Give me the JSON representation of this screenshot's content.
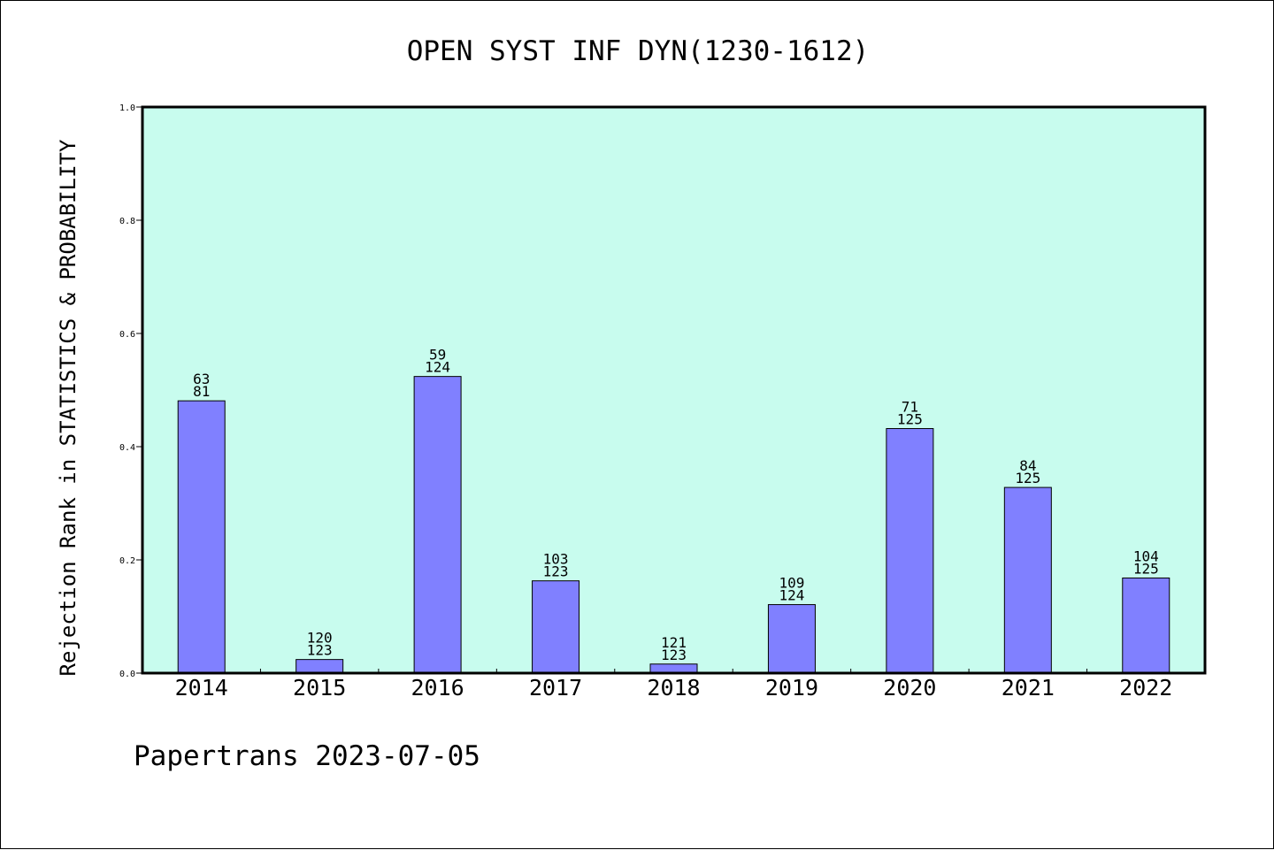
{
  "chart_data": {
    "type": "bar",
    "title": "OPEN SYST INF DYN(1230-1612)",
    "ylabel": "Rejection Rank in STATISTICS & PROBABILITY",
    "xlabel": "",
    "footer": "Papertrans 2023-07-05",
    "categories": [
      "2014",
      "2015",
      "2016",
      "2017",
      "2018",
      "2019",
      "2020",
      "2021",
      "2022"
    ],
    "values": [
      0.481,
      0.024,
      0.524,
      0.163,
      0.016,
      0.121,
      0.432,
      0.328,
      0.168
    ],
    "labels_top": [
      "63",
      "120",
      "59",
      "103",
      "121",
      "109",
      "71",
      "84",
      "104"
    ],
    "labels_bottom": [
      "81",
      "123",
      "124",
      "123",
      "123",
      "124",
      "125",
      "125",
      "125"
    ],
    "ylim": [
      0,
      1.0
    ],
    "yticks": [
      "0.0",
      "0.2",
      "0.4",
      "0.6",
      "0.8",
      "1.0"
    ],
    "grid": false,
    "colors": {
      "plot_background": "#c8fcee",
      "bar_fill": "#8080ff",
      "bar_stroke": "#000000"
    }
  }
}
